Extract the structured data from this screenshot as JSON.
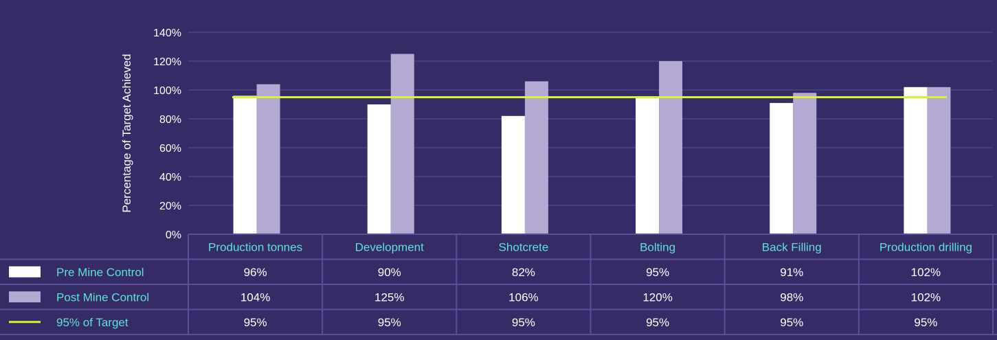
{
  "chart_data": {
    "type": "bar",
    "ylabel": "Percentage of Target Achieved",
    "ylim": [
      0,
      140
    ],
    "yticks": [
      "0%",
      "20%",
      "40%",
      "60%",
      "80%",
      "100%",
      "120%",
      "140%"
    ],
    "grid": true,
    "categories": [
      "Production tonnes",
      "Development",
      "Shotcrete",
      "Bolting",
      "Back Filling",
      "Production drilling"
    ],
    "series": [
      {
        "name": "Pre Mine Control",
        "type": "bar",
        "color": "#ffffff",
        "values": [
          96,
          90,
          82,
          95,
          91,
          102
        ],
        "labels": [
          "96%",
          "90%",
          "82%",
          "95%",
          "91%",
          "102%"
        ]
      },
      {
        "name": "Post Mine Control",
        "type": "bar",
        "color": "#b3a9d3",
        "values": [
          104,
          125,
          106,
          120,
          98,
          102
        ],
        "labels": [
          "104%",
          "125%",
          "106%",
          "120%",
          "98%",
          "102%"
        ]
      },
      {
        "name": "95% of Target",
        "type": "line",
        "color": "#dcf231",
        "values": [
          95,
          95,
          95,
          95,
          95,
          95
        ],
        "labels": [
          "95%",
          "95%",
          "95%",
          "95%",
          "95%",
          "95%"
        ]
      }
    ],
    "legend": "data-table"
  }
}
